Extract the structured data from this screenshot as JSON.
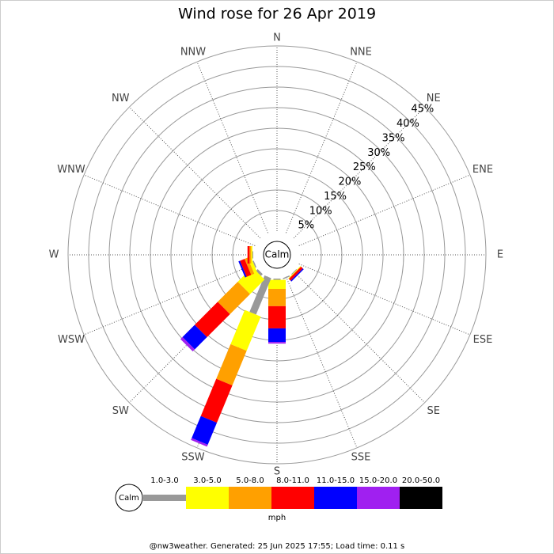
{
  "chart_data": {
    "type": "wind_rose",
    "title": "Wind rose for 26 Apr 2019",
    "directions": [
      "N",
      "NNE",
      "NE",
      "ENE",
      "E",
      "ESE",
      "SE",
      "SSE",
      "S",
      "SSW",
      "SW",
      "WSW",
      "W",
      "WNW",
      "NW",
      "NNW"
    ],
    "center_label": "Calm",
    "series": [
      {
        "name": "1.0-3.0",
        "color": "#999999",
        "values": [
          0,
          0,
          0,
          0,
          0,
          0,
          0.2,
          0.3,
          0.3,
          9.6,
          0.6,
          0.3,
          0.2,
          0,
          0,
          0
        ]
      },
      {
        "name": "3.0-5.0",
        "color": "#ffff00",
        "values": [
          0,
          0,
          0,
          0,
          0,
          0,
          0.2,
          0,
          2.2,
          9.0,
          5.0,
          0.8,
          0.3,
          0,
          0,
          0
        ]
      },
      {
        "name": "5.0-8.0",
        "color": "#ffa000",
        "values": [
          0,
          0,
          0,
          0,
          0,
          0,
          0,
          0,
          4.2,
          9.1,
          6.9,
          0.8,
          0.4,
          0,
          0,
          0
        ]
      },
      {
        "name": "8.0-11.0",
        "color": "#ff0000",
        "values": [
          0,
          0,
          0,
          0,
          0,
          0,
          0.6,
          0,
          5.4,
          9.8,
          7.9,
          1.2,
          0.5,
          0,
          0,
          0
        ]
      },
      {
        "name": "11.0-15.0",
        "color": "#0000ff",
        "values": [
          0,
          0,
          0,
          0,
          0,
          0,
          0.3,
          0,
          3.3,
          5.8,
          4.2,
          0.4,
          0,
          0,
          0,
          0
        ]
      },
      {
        "name": "15.0-20.0",
        "color": "#a020f0",
        "values": [
          0,
          0,
          0,
          0,
          0,
          0,
          0,
          0,
          0.4,
          0.5,
          0.7,
          0,
          0,
          0,
          0,
          0
        ]
      },
      {
        "name": "20.0-50.0",
        "color": "#000000",
        "values": [
          0,
          0,
          0,
          0,
          0,
          0,
          0,
          0,
          0,
          0,
          0,
          0,
          0,
          0,
          0,
          0
        ]
      }
    ],
    "rlim": [
      0,
      45
    ],
    "rticks": [
      {
        "value": 5,
        "label": "5%"
      },
      {
        "value": 10,
        "label": "10%"
      },
      {
        "value": 15,
        "label": "15%"
      },
      {
        "value": 20,
        "label": "20%"
      },
      {
        "value": 25,
        "label": "25%"
      },
      {
        "value": 30,
        "label": "30%"
      },
      {
        "value": 35,
        "label": "35%"
      },
      {
        "value": 40,
        "label": "40%"
      },
      {
        "value": 45,
        "label": "45%"
      }
    ],
    "legend_unit": "mph"
  },
  "footer": "@nw3weather. Generated: 25 Jun 2025 17:55; Load time: 0.11 s"
}
